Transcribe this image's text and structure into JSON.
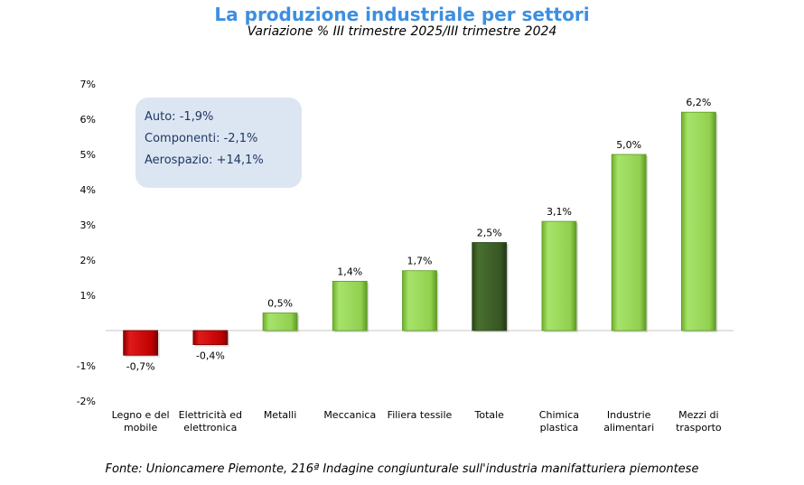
{
  "title": "La produzione industriale per settori",
  "subtitle": "Variazione % III trimestre 2025/III trimestre 2024",
  "source": "Fonte: Unioncamere Piemonte, 216ª Indagine congiunturale sull'industria manifatturiera piemontese",
  "note_box": {
    "lines": [
      "Auto: -1,9%",
      "Componenti: -2,1%",
      "Aerospazio: +14,1%"
    ]
  },
  "colors": {
    "positive": "#92d050",
    "negative": "#c00000",
    "total": "#375623",
    "title": "#3d8fe0"
  },
  "chart_data": {
    "type": "bar",
    "categories": [
      [
        "Legno e del",
        "mobile"
      ],
      [
        "Elettricità ed",
        "elettronica"
      ],
      [
        "Metalli"
      ],
      [
        "Meccanica"
      ],
      [
        "Filiera tessile"
      ],
      [
        "Totale"
      ],
      [
        "Chimica",
        "plastica"
      ],
      [
        "Industrie",
        "alimentari"
      ],
      [
        "Mezzi di",
        "trasporto"
      ]
    ],
    "values": [
      -0.7,
      -0.4,
      0.5,
      1.4,
      1.7,
      2.5,
      3.1,
      5.0,
      6.2
    ],
    "data_labels": [
      "-0,7%",
      "-0,4%",
      "0,5%",
      "1,4%",
      "1,7%",
      "2,5%",
      "3,1%",
      "5,0%",
      "6,2%"
    ],
    "ylim": [
      -2,
      7
    ],
    "yticks": [
      7,
      6,
      5,
      4,
      3,
      2,
      1,
      -1,
      -2
    ],
    "ytick_labels": [
      "7%",
      "6%",
      "5%",
      "4%",
      "3%",
      "2%",
      "1%",
      "-1%",
      "-2%"
    ],
    "highlight_category": "Totale",
    "grid": false,
    "legend": "none"
  }
}
